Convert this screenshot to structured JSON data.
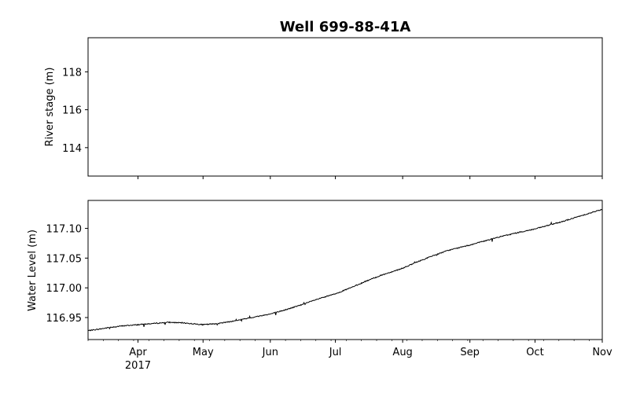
{
  "chart_data": [
    {
      "type": "line",
      "title": "Well 699-88-41A",
      "xlabel": "",
      "ylabel": "River stage (m)",
      "ylim": [
        112.5,
        119.8
      ],
      "yticks": [
        114,
        116,
        118
      ],
      "ytick_labels": [
        "114",
        "116",
        "118"
      ],
      "grid": false,
      "series": []
    },
    {
      "type": "line",
      "title": "",
      "xlabel": "",
      "ylabel": "Water Level (m)",
      "xlim": [
        "2017-03-09",
        "2017-11-01"
      ],
      "ylim": [
        116.913,
        117.147
      ],
      "yticks": [
        116.95,
        117.0,
        117.05,
        117.1
      ],
      "ytick_labels": [
        "116.95",
        "117.00",
        "117.05",
        "117.10"
      ],
      "xticks": [
        "2017-04-01",
        "2017-05-01",
        "2017-06-01",
        "2017-07-01",
        "2017-08-01",
        "2017-09-01",
        "2017-10-01",
        "2017-11-01"
      ],
      "xtick_labels": [
        "Apr\n2017",
        "May",
        "Jun",
        "Jul",
        "Aug",
        "Sep",
        "Oct",
        "Nov"
      ],
      "grid": false,
      "color": "#000000",
      "series": [
        {
          "x": [
            "2017-03-09",
            "2017-03-15",
            "2017-03-20",
            "2017-03-25",
            "2017-04-01",
            "2017-04-08",
            "2017-04-15",
            "2017-04-22",
            "2017-05-01",
            "2017-05-08",
            "2017-05-15",
            "2017-05-22",
            "2017-06-01",
            "2017-06-08",
            "2017-06-15",
            "2017-06-22",
            "2017-07-01",
            "2017-07-08",
            "2017-07-15",
            "2017-07-22",
            "2017-08-01",
            "2017-08-08",
            "2017-08-15",
            "2017-08-22",
            "2017-09-01",
            "2017-09-08",
            "2017-09-15",
            "2017-09-22",
            "2017-10-01",
            "2017-10-08",
            "2017-10-15",
            "2017-10-22",
            "2017-11-01"
          ],
          "y": [
            116.928,
            116.931,
            116.934,
            116.936,
            116.938,
            116.94,
            116.942,
            116.941,
            116.938,
            116.94,
            116.944,
            116.949,
            116.956,
            116.963,
            116.971,
            116.98,
            116.99,
            117.0,
            117.011,
            117.021,
            117.033,
            117.044,
            117.054,
            117.063,
            117.072,
            117.079,
            117.086,
            117.092,
            117.099,
            117.106,
            117.113,
            117.121,
            117.132
          ]
        }
      ]
    }
  ]
}
